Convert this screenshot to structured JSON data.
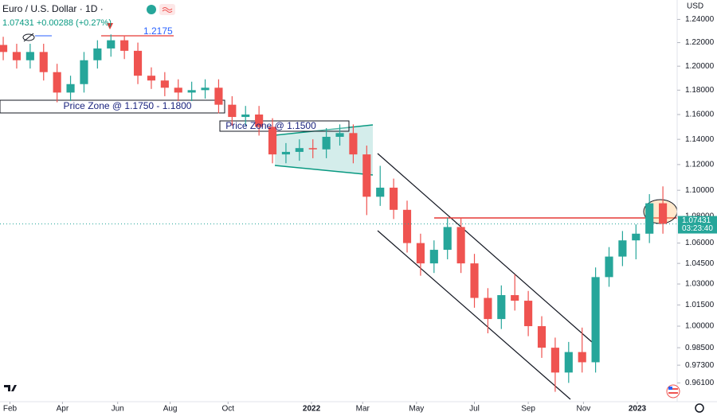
{
  "chart_data": {
    "type": "candlestick",
    "title": "Euro / U.S. Dollar · 1D ·",
    "subtitle": "1.07431 +0.00288 (+0.27%)",
    "currency_label": "USD",
    "last_price_label": "1.07431",
    "countdown": "03:23:40",
    "annotations": [
      "1.2175",
      "Price Zone @ 1.1750 - 1.1800",
      "Price Zone @ 1.1500"
    ],
    "categories": [
      null,
      null,
      null,
      null,
      null,
      null,
      null,
      null,
      null,
      null,
      null,
      null,
      null,
      null,
      null,
      null,
      null,
      null,
      null,
      null,
      null,
      null,
      null,
      null,
      null,
      null,
      null,
      null,
      null,
      null,
      null,
      null,
      null,
      null,
      null,
      null,
      null,
      null,
      null,
      null,
      null,
      null,
      null,
      null,
      null,
      null,
      null,
      null,
      null,
      null
    ],
    "open": [
      1.218,
      1.212,
      1.205,
      1.212,
      1.195,
      1.178,
      1.185,
      1.205,
      1.215,
      1.222,
      1.213,
      1.192,
      1.188,
      1.182,
      1.178,
      1.18,
      1.182,
      1.168,
      1.158,
      1.16,
      1.15,
      1.128,
      1.13,
      1.133,
      1.132,
      1.142,
      1.145,
      1.128,
      1.095,
      1.102,
      1.085,
      1.06,
      1.045,
      1.055,
      1.072,
      1.045,
      1.02,
      1.005,
      1.022,
      1.018,
      1.0,
      0.985,
      0.968,
      0.982,
      0.975,
      1.035,
      1.05,
      1.062,
      1.067,
      1.09
    ],
    "high": [
      1.225,
      1.219,
      1.219,
      1.219,
      1.202,
      1.192,
      1.212,
      1.222,
      1.227,
      1.226,
      1.22,
      1.199,
      1.195,
      1.189,
      1.187,
      1.189,
      1.189,
      1.175,
      1.167,
      1.167,
      1.157,
      1.137,
      1.14,
      1.14,
      1.149,
      1.152,
      1.152,
      1.135,
      1.119,
      1.109,
      1.092,
      1.067,
      1.062,
      1.079,
      1.079,
      1.052,
      1.027,
      1.029,
      1.037,
      1.025,
      1.007,
      0.992,
      0.989,
      0.999,
      1.042,
      1.057,
      1.069,
      1.074,
      1.097,
      1.103
    ],
    "low": [
      1.205,
      1.198,
      1.198,
      1.188,
      1.17,
      1.171,
      1.178,
      1.198,
      1.208,
      1.206,
      1.185,
      1.181,
      1.175,
      1.171,
      1.171,
      1.173,
      1.161,
      1.151,
      1.151,
      1.143,
      1.121,
      1.121,
      1.123,
      1.125,
      1.125,
      1.135,
      1.121,
      1.081,
      1.088,
      1.078,
      1.053,
      1.036,
      1.038,
      1.048,
      1.038,
      1.013,
      0.995,
      0.998,
      1.011,
      0.993,
      0.978,
      0.955,
      0.961,
      0.968,
      0.968,
      1.028,
      1.043,
      1.048,
      1.06,
      1.067
    ],
    "close": [
      1.212,
      1.205,
      1.212,
      1.195,
      1.178,
      1.185,
      1.205,
      1.215,
      1.222,
      1.213,
      1.192,
      1.188,
      1.182,
      1.178,
      1.18,
      1.182,
      1.168,
      1.158,
      1.16,
      1.15,
      1.128,
      1.13,
      1.133,
      1.132,
      1.142,
      1.145,
      1.128,
      1.095,
      1.102,
      1.085,
      1.06,
      1.045,
      1.055,
      1.072,
      1.045,
      1.02,
      1.005,
      1.022,
      1.018,
      1.0,
      0.985,
      0.968,
      0.982,
      0.975,
      1.035,
      1.05,
      1.062,
      1.067,
      1.09,
      1.0743
    ],
    "up_color": "#26a69a",
    "down_color": "#ef5350",
    "xlim": [
      -0.24,
      50.06
    ],
    "xticks": [
      {
        "value": 0.5,
        "label": "Feb"
      },
      {
        "value": 4.4,
        "label": "Apr"
      },
      {
        "value": 8.5,
        "label": "Jun"
      },
      {
        "value": 12.4,
        "label": "Aug"
      },
      {
        "value": 16.7,
        "label": "Oct"
      },
      {
        "value": 22.9,
        "label": "2022"
      },
      {
        "value": 26.7,
        "label": "Mar"
      },
      {
        "value": 30.7,
        "label": "May"
      },
      {
        "value": 35.0,
        "label": "Jul"
      },
      {
        "value": 39.0,
        "label": "Sep"
      },
      {
        "value": 43.1,
        "label": "Nov"
      },
      {
        "value": 47.1,
        "label": "2023"
      }
    ],
    "ylim": [
      0.95,
      1.257
    ],
    "log_scale": true,
    "yticks": [
      {
        "value": 1.24,
        "label": "1.24000"
      },
      {
        "value": 1.22,
        "label": "1.22000"
      },
      {
        "value": 1.2,
        "label": "1.20000"
      },
      {
        "value": 1.18,
        "label": "1.18000"
      },
      {
        "value": 1.16,
        "label": "1.16000"
      },
      {
        "value": 1.14,
        "label": "1.14000"
      },
      {
        "value": 1.12,
        "label": "1.12000"
      },
      {
        "value": 1.1,
        "label": "1.10000"
      },
      {
        "value": 1.08,
        "label": "1.08000"
      },
      {
        "value": 1.06,
        "label": "1.06000"
      },
      {
        "value": 1.045,
        "label": "1.04500"
      },
      {
        "value": 1.03,
        "label": "1.03000"
      },
      {
        "value": 1.015,
        "label": "1.01500"
      },
      {
        "value": 1.0,
        "label": "1.00000"
      },
      {
        "value": 0.985,
        "label": "0.98500"
      },
      {
        "value": 0.973,
        "label": "0.97300"
      },
      {
        "value": 0.961,
        "label": "0.96100"
      }
    ],
    "grid": false
  }
}
